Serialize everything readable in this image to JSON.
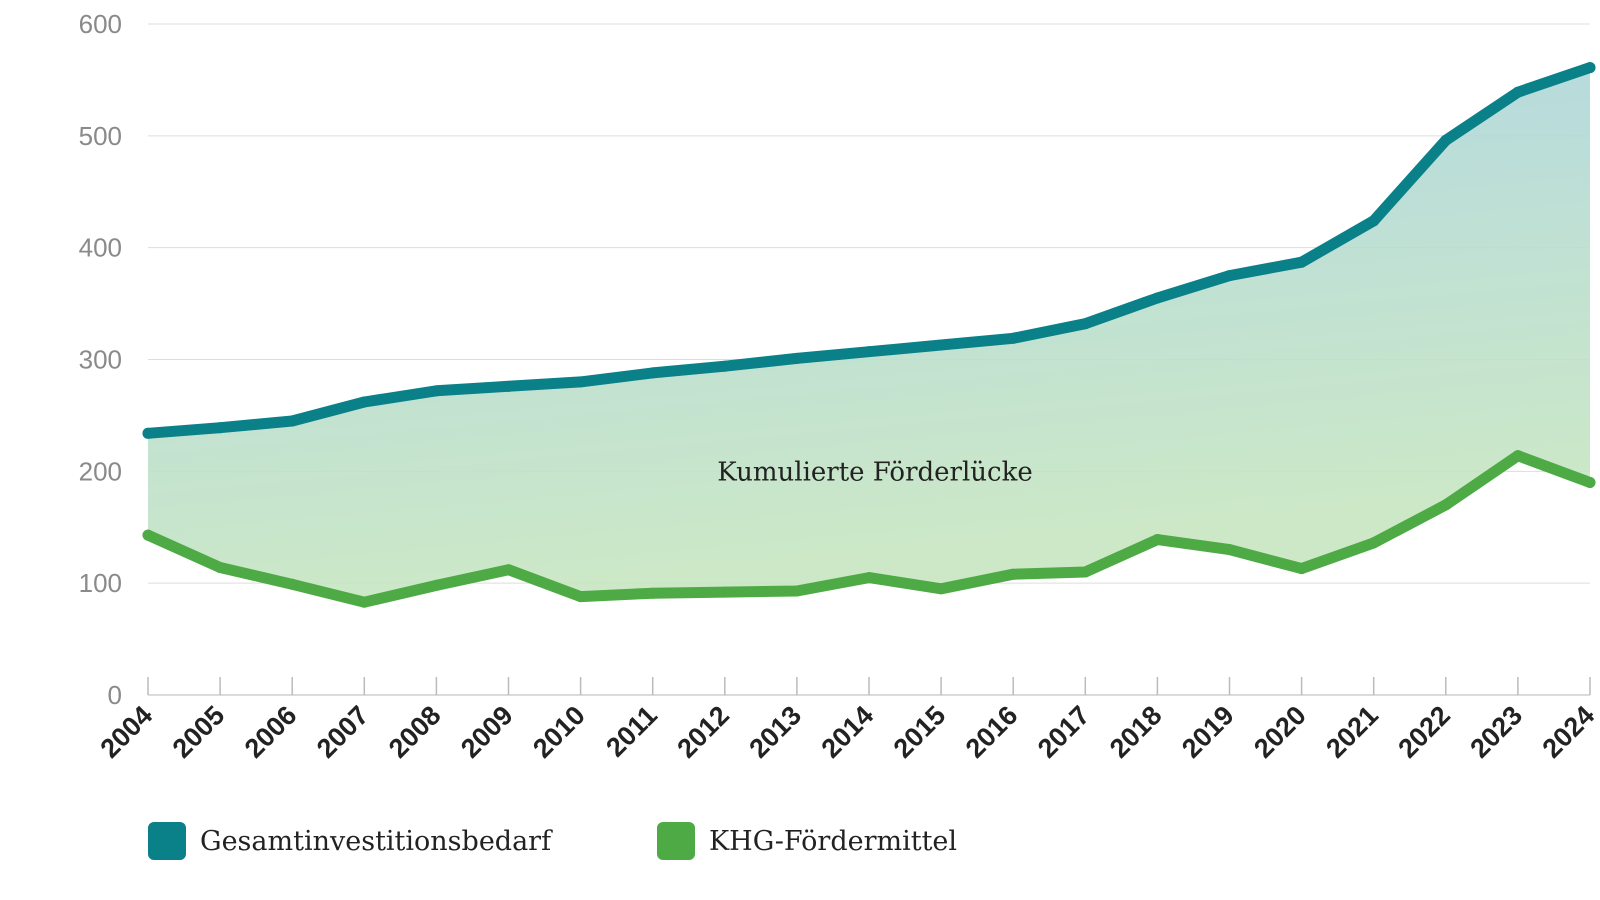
{
  "chart_data": {
    "type": "area",
    "title": "",
    "xlabel": "",
    "ylabel": "",
    "x": [
      "2004",
      "2005",
      "2006",
      "2007",
      "2008",
      "2009",
      "2010",
      "2011",
      "2012",
      "2013",
      "2014",
      "2015",
      "2016",
      "2017",
      "2018",
      "2019",
      "2020",
      "2021",
      "2022",
      "2023",
      "2024"
    ],
    "ylim": [
      0,
      600
    ],
    "yticks": [
      "0",
      "100",
      "200",
      "300",
      "400",
      "500",
      "600"
    ],
    "grid": true,
    "series": [
      {
        "name": "Gesamtinvestitionsbedarf",
        "color": "#0a8088",
        "values": [
          234,
          239,
          245,
          262,
          272,
          276,
          280,
          288,
          294,
          301,
          307,
          313,
          319,
          332,
          355,
          375,
          387,
          424,
          496,
          539,
          561
        ]
      },
      {
        "name": "KHG-Fördermittel",
        "color": "#4daa45",
        "values": [
          143,
          114,
          99,
          83,
          98,
          112,
          88,
          91,
          92,
          93,
          105,
          95,
          108,
          110,
          139,
          130,
          113,
          136,
          170,
          214,
          190
        ]
      }
    ],
    "area_fill": {
      "top_color": "#a9d3e0",
      "bottom_color": "#c7e6c0"
    },
    "annotation": "Kumulierte Förderlücke",
    "legend_position": "bottom-left"
  }
}
